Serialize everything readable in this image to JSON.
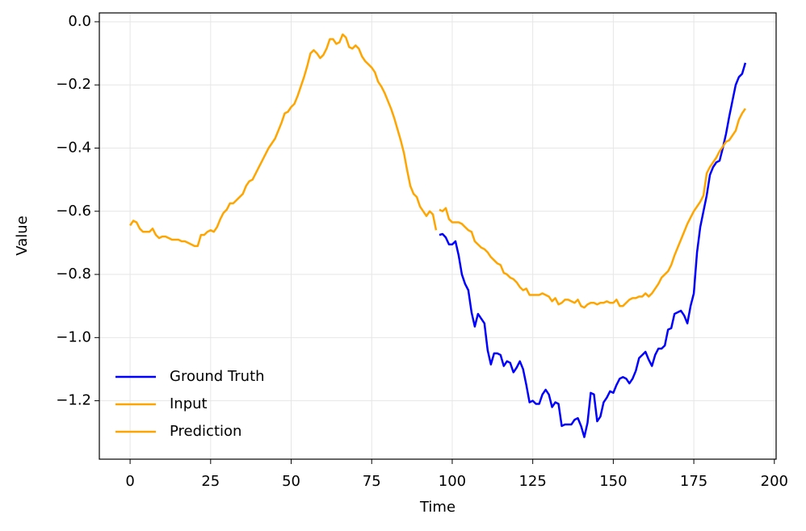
{
  "chart_data": {
    "type": "line",
    "x_label": "Time",
    "y_label": "Value",
    "xlim": [
      -9.55,
      200.55
    ],
    "ylim": [
      -1.385,
      0.028
    ],
    "xticks": [
      0,
      25,
      50,
      75,
      100,
      125,
      150,
      175,
      200
    ],
    "yticks": [
      {
        "value": 0.0,
        "label": "0.0"
      },
      {
        "value": -0.2,
        "label": "−0.2"
      },
      {
        "value": -0.4,
        "label": "−0.4"
      },
      {
        "value": -0.6,
        "label": "−0.6"
      },
      {
        "value": -0.8,
        "label": "−0.8"
      },
      {
        "value": -1.0,
        "label": "−1.0"
      },
      {
        "value": -1.2,
        "label": "−1.2"
      }
    ],
    "grid": true,
    "legend": "lower left",
    "series": [
      {
        "name": "Ground Truth",
        "color": "#0000ff",
        "x": [
          96,
          97,
          98,
          99,
          100,
          101,
          102,
          103,
          104,
          105,
          106,
          107,
          108,
          109,
          110,
          111,
          112,
          113,
          114,
          115,
          116,
          117,
          118,
          119,
          120,
          121,
          122,
          123,
          124,
          125,
          126,
          127,
          128,
          129,
          130,
          131,
          132,
          133,
          134,
          135,
          136,
          137,
          138,
          139,
          140,
          141,
          142,
          143,
          144,
          145,
          146,
          147,
          148,
          149,
          150,
          151,
          152,
          153,
          154,
          155,
          156,
          157,
          158,
          159,
          160,
          161,
          162,
          163,
          164,
          165,
          166,
          167,
          168,
          169,
          170,
          171,
          172,
          173,
          174,
          175,
          176,
          177,
          178,
          179,
          180,
          181,
          182,
          183,
          184,
          185,
          186,
          187,
          188,
          189,
          190,
          191
        ],
        "values": [
          -0.675,
          -0.672,
          -0.683,
          -0.705,
          -0.705,
          -0.695,
          -0.74,
          -0.8,
          -0.83,
          -0.85,
          -0.92,
          -0.965,
          -0.925,
          -0.94,
          -0.955,
          -1.04,
          -1.085,
          -1.05,
          -1.05,
          -1.055,
          -1.09,
          -1.075,
          -1.08,
          -1.11,
          -1.095,
          -1.075,
          -1.1,
          -1.15,
          -1.205,
          -1.2,
          -1.21,
          -1.21,
          -1.18,
          -1.165,
          -1.18,
          -1.22,
          -1.205,
          -1.21,
          -1.28,
          -1.275,
          -1.275,
          -1.275,
          -1.26,
          -1.255,
          -1.28,
          -1.315,
          -1.27,
          -1.175,
          -1.18,
          -1.265,
          -1.25,
          -1.205,
          -1.19,
          -1.17,
          -1.175,
          -1.15,
          -1.13,
          -1.125,
          -1.13,
          -1.145,
          -1.13,
          -1.105,
          -1.065,
          -1.055,
          -1.045,
          -1.07,
          -1.09,
          -1.055,
          -1.035,
          -1.035,
          -1.025,
          -0.975,
          -0.97,
          -0.925,
          -0.92,
          -0.915,
          -0.93,
          -0.955,
          -0.9,
          -0.86,
          -0.73,
          -0.65,
          -0.6,
          -0.55,
          -0.485,
          -0.46,
          -0.445,
          -0.44,
          -0.4,
          -0.355,
          -0.3,
          -0.25,
          -0.2,
          -0.175,
          -0.165,
          -0.13
        ]
      },
      {
        "name": "Input",
        "color": "#ffa500",
        "x": [
          0,
          1,
          2,
          3,
          4,
          5,
          6,
          7,
          8,
          9,
          10,
          11,
          12,
          13,
          14,
          15,
          16,
          17,
          18,
          19,
          20,
          21,
          22,
          23,
          24,
          25,
          26,
          27,
          28,
          29,
          30,
          31,
          32,
          33,
          34,
          35,
          36,
          37,
          38,
          39,
          40,
          41,
          42,
          43,
          44,
          45,
          46,
          47,
          48,
          49,
          50,
          51,
          52,
          53,
          54,
          55,
          56,
          57,
          58,
          59,
          60,
          61,
          62,
          63,
          64,
          65,
          66,
          67,
          68,
          69,
          70,
          71,
          72,
          73,
          74,
          75,
          76,
          77,
          78,
          79,
          80,
          81,
          82,
          83,
          84,
          85,
          86,
          87,
          88,
          89,
          90,
          91,
          92,
          93,
          94,
          95
        ],
        "values": [
          -0.645,
          -0.63,
          -0.635,
          -0.655,
          -0.665,
          -0.665,
          -0.665,
          -0.655,
          -0.675,
          -0.685,
          -0.68,
          -0.68,
          -0.685,
          -0.69,
          -0.69,
          -0.69,
          -0.695,
          -0.695,
          -0.7,
          -0.705,
          -0.71,
          -0.71,
          -0.675,
          -0.675,
          -0.665,
          -0.66,
          -0.665,
          -0.65,
          -0.625,
          -0.605,
          -0.595,
          -0.575,
          -0.575,
          -0.565,
          -0.555,
          -0.545,
          -0.52,
          -0.505,
          -0.5,
          -0.48,
          -0.46,
          -0.44,
          -0.42,
          -0.4,
          -0.385,
          -0.37,
          -0.345,
          -0.32,
          -0.29,
          -0.285,
          -0.27,
          -0.26,
          -0.235,
          -0.205,
          -0.175,
          -0.14,
          -0.1,
          -0.09,
          -0.1,
          -0.115,
          -0.105,
          -0.085,
          -0.055,
          -0.055,
          -0.07,
          -0.065,
          -0.04,
          -0.05,
          -0.08,
          -0.085,
          -0.075,
          -0.085,
          -0.11,
          -0.125,
          -0.135,
          -0.145,
          -0.16,
          -0.19,
          -0.205,
          -0.225,
          -0.25,
          -0.275,
          -0.305,
          -0.34,
          -0.375,
          -0.415,
          -0.47,
          -0.52,
          -0.545,
          -0.555,
          -0.585,
          -0.6,
          -0.615,
          -0.6,
          -0.61,
          -0.66
        ]
      },
      {
        "name": "Prediction",
        "color": "#ffa500",
        "x": [
          96,
          97,
          98,
          99,
          100,
          101,
          102,
          103,
          104,
          105,
          106,
          107,
          108,
          109,
          110,
          111,
          112,
          113,
          114,
          115,
          116,
          117,
          118,
          119,
          120,
          121,
          122,
          123,
          124,
          125,
          126,
          127,
          128,
          129,
          130,
          131,
          132,
          133,
          134,
          135,
          136,
          137,
          138,
          139,
          140,
          141,
          142,
          143,
          144,
          145,
          146,
          147,
          148,
          149,
          150,
          151,
          152,
          153,
          154,
          155,
          156,
          157,
          158,
          159,
          160,
          161,
          162,
          163,
          164,
          165,
          166,
          167,
          168,
          169,
          170,
          171,
          172,
          173,
          174,
          175,
          176,
          177,
          178,
          179,
          180,
          181,
          182,
          183,
          184,
          185,
          186,
          187,
          188,
          189,
          190,
          191
        ],
        "values": [
          -0.595,
          -0.6,
          -0.59,
          -0.625,
          -0.635,
          -0.635,
          -0.635,
          -0.64,
          -0.65,
          -0.66,
          -0.665,
          -0.695,
          -0.705,
          -0.715,
          -0.72,
          -0.73,
          -0.745,
          -0.755,
          -0.765,
          -0.77,
          -0.795,
          -0.8,
          -0.81,
          -0.815,
          -0.825,
          -0.84,
          -0.85,
          -0.845,
          -0.865,
          -0.865,
          -0.865,
          -0.865,
          -0.86,
          -0.865,
          -0.87,
          -0.885,
          -0.875,
          -0.895,
          -0.89,
          -0.88,
          -0.88,
          -0.885,
          -0.89,
          -0.88,
          -0.9,
          -0.905,
          -0.895,
          -0.89,
          -0.89,
          -0.895,
          -0.89,
          -0.89,
          -0.885,
          -0.89,
          -0.89,
          -0.88,
          -0.9,
          -0.9,
          -0.89,
          -0.88,
          -0.875,
          -0.875,
          -0.87,
          -0.87,
          -0.86,
          -0.87,
          -0.86,
          -0.845,
          -0.83,
          -0.81,
          -0.8,
          -0.79,
          -0.77,
          -0.74,
          -0.715,
          -0.69,
          -0.665,
          -0.64,
          -0.62,
          -0.6,
          -0.585,
          -0.57,
          -0.55,
          -0.48,
          -0.46,
          -0.445,
          -0.43,
          -0.41,
          -0.395,
          -0.38,
          -0.375,
          -0.36,
          -0.345,
          -0.31,
          -0.29,
          -0.275
        ]
      }
    ]
  }
}
